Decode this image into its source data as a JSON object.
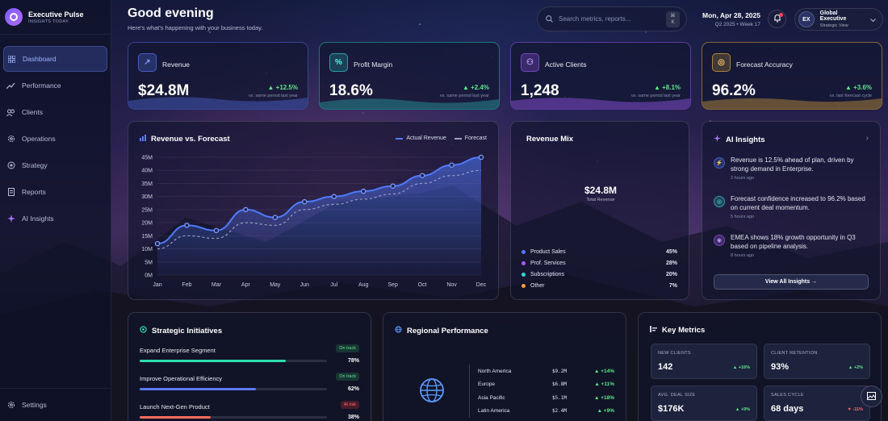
{
  "brand": {
    "name": "Executive Pulse",
    "tagline": "INSIGHTS TODAY."
  },
  "nav": {
    "items": [
      {
        "label": "Dashboard",
        "icon": "grid-icon"
      },
      {
        "label": "Performance",
        "icon": "trend-icon"
      },
      {
        "label": "Clients",
        "icon": "users-icon"
      },
      {
        "label": "Operations",
        "icon": "gear-icon"
      },
      {
        "label": "Strategy",
        "icon": "target-icon"
      },
      {
        "label": "Reports",
        "icon": "document-icon"
      },
      {
        "label": "AI Insights",
        "icon": "sparkle-icon"
      }
    ],
    "settings": "Settings"
  },
  "header": {
    "greeting": "Good evening",
    "subtitle": "Here's what's happening with your business today.",
    "search_placeholder": "Search metrics, reports...",
    "kbd": [
      "⌘",
      "K"
    ],
    "date": "Mon, Apr 28, 2025",
    "period": "Q2 2025 • Week 17",
    "avatar_initials": "EX",
    "profile_name": "Global Executive",
    "profile_role": "Strategic View"
  },
  "kpis": [
    {
      "label": "Revenue",
      "value": "$24.8M",
      "delta": "+12.5%",
      "compare": "vs. same period last year",
      "glyph": "↗",
      "color": "#5b7bff"
    },
    {
      "label": "Profit Margin",
      "value": "18.6%",
      "delta": "+2.4%",
      "compare": "vs. same period last year",
      "glyph": "%",
      "color": "#2ee0d0"
    },
    {
      "label": "Active Clients",
      "value": "1,248",
      "delta": "+8.1%",
      "compare": "vs. same period last year",
      "glyph": "⚇",
      "color": "#a45cff"
    },
    {
      "label": "Forecast Accuracy",
      "value": "96.2%",
      "delta": "+3.6%",
      "compare": "vs. last forecast cycle",
      "glyph": "◎",
      "color": "#f6b73c"
    }
  ],
  "revenue_chart": {
    "title": "Revenue vs. Forecast",
    "legend_actual": "Actual Revenue",
    "legend_forecast": "Forecast"
  },
  "chart_data": {
    "type": "line",
    "title": "Revenue vs. Forecast",
    "xlabel": "",
    "ylabel": "",
    "categories": [
      "Jan",
      "Feb",
      "Mar",
      "Apr",
      "May",
      "Jun",
      "Jul",
      "Aug",
      "Sep",
      "Oct",
      "Nov",
      "Dec"
    ],
    "y_ticks": [
      "0M",
      "5M",
      "10M",
      "15M",
      "20M",
      "25M",
      "30M",
      "35M",
      "40M",
      "45M"
    ],
    "ylim": [
      0,
      45
    ],
    "series": [
      {
        "name": "Actual Revenue",
        "values": [
          12,
          19,
          17,
          25,
          22,
          28,
          30,
          32,
          34,
          38,
          42,
          45
        ],
        "color": "#4f7bff"
      },
      {
        "name": "Forecast",
        "values": [
          10,
          15,
          14,
          20,
          19,
          25,
          27,
          29,
          31,
          35,
          38,
          40
        ],
        "color": "#9aa0c0"
      }
    ],
    "grid": true,
    "legend": "top-right"
  },
  "revenue_mix": {
    "title": "Revenue Mix",
    "total_value": "$24.8M",
    "total_label": "Total Revenue",
    "items": [
      {
        "label": "Product Sales",
        "pct": "45%",
        "color": "#4f7bff"
      },
      {
        "label": "Prof. Services",
        "pct": "28%",
        "color": "#a45cff"
      },
      {
        "label": "Subscriptions",
        "pct": "20%",
        "color": "#2ee0d0"
      },
      {
        "label": "Other",
        "pct": "7%",
        "color": "#f6a13c"
      }
    ]
  },
  "ai_insights": {
    "title": "AI Insights",
    "items": [
      {
        "text": "Revenue is 12.5% ahead of plan, driven by strong demand in Enterprise.",
        "time": "2 hours ago",
        "icon": "bolt-icon",
        "color": "#4f7bff"
      },
      {
        "text": "Forecast confidence increased to 96.2% based on current deal momentum.",
        "time": "5 hours ago",
        "icon": "target-icon",
        "color": "#2ee0d0"
      },
      {
        "text": "EMEA shows 18% growth opportunity in Q3 based on pipeline analysis.",
        "time": "8 hours ago",
        "icon": "globe-icon",
        "color": "#a45cff"
      }
    ],
    "button": "View All Insights →"
  },
  "initiatives": {
    "title": "Strategic Initiatives",
    "items": [
      {
        "name": "Expand Enterprise Segment",
        "status": "On track",
        "progress": "78%",
        "fraction": 0.78,
        "color": "#2ee0b0",
        "status_color": "#5ee68a"
      },
      {
        "name": "Improve Operational Efficiency",
        "status": "On track",
        "progress": "62%",
        "fraction": 0.62,
        "color": "#5b7bff",
        "status_color": "#5ee68a"
      },
      {
        "name": "Launch Next-Gen Product",
        "status": "At risk",
        "progress": "38%",
        "fraction": 0.38,
        "color": "#ff6b5a",
        "status_color": "#ff6b6b"
      }
    ]
  },
  "regional": {
    "title": "Regional Performance",
    "rows": [
      {
        "region": "North America",
        "value": "$9.2M",
        "delta": "▲ +14%"
      },
      {
        "region": "Europe",
        "value": "$6.8M",
        "delta": "▲ +11%"
      },
      {
        "region": "Asia Pacific",
        "value": "$5.1M",
        "delta": "▲ +18%"
      },
      {
        "region": "Latin America",
        "value": "$2.4M",
        "delta": "▲ +9%"
      }
    ]
  },
  "key_metrics": {
    "title": "Key Metrics",
    "items": [
      {
        "label": "NEW CLIENTS",
        "value": "142",
        "delta": "▲ +16%",
        "color": "#5ee68a"
      },
      {
        "label": "CLIENT RETENTION",
        "value": "93%",
        "delta": "▲ +2%",
        "color": "#5ee68a"
      },
      {
        "label": "AVG. DEAL SIZE",
        "value": "$176K",
        "delta": "▲ +9%",
        "color": "#5ee68a"
      },
      {
        "label": "SALES CYCLE",
        "value": "68 days",
        "delta": "▼ -11%",
        "color": "#ff6b6b"
      }
    ]
  }
}
